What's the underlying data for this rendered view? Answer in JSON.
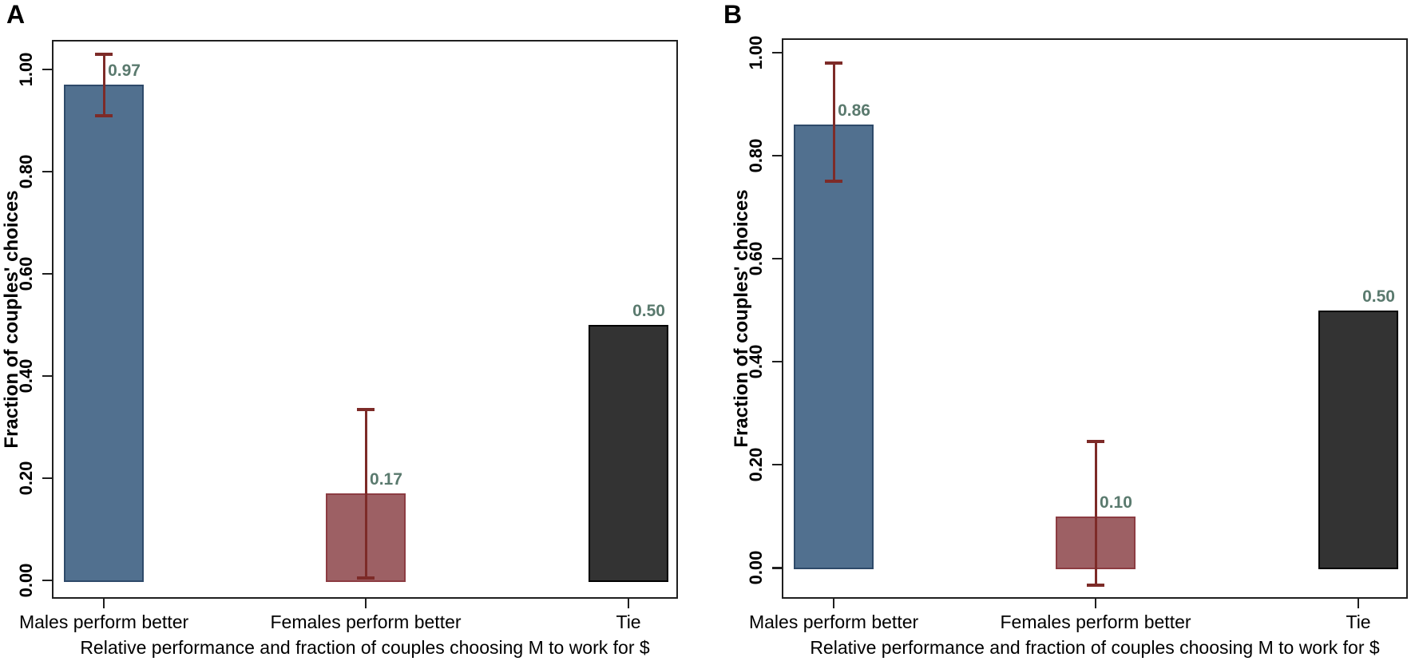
{
  "chart_data": {
    "type": "bar",
    "panels": [
      {
        "label": "A",
        "ylabel": "Fraction of couples' choices",
        "xlabel": "Relative performance and fraction of couples choosing M to work for $",
        "categories": [
          "Males perform better",
          "Females perform better",
          "Tie"
        ],
        "values": [
          0.97,
          0.17,
          0.5
        ],
        "value_labels": [
          "0.97",
          "0.17",
          "0.50"
        ],
        "errors": [
          {
            "low": 0.91,
            "high": 1.03
          },
          {
            "low": 0.005,
            "high": 0.335
          },
          null
        ],
        "yticks": [
          0,
          0.2,
          0.4,
          0.6,
          0.8,
          1.0
        ],
        "ytick_labels": [
          "0.00",
          "0.20",
          "0.40",
          "0.60",
          "0.80",
          "1.00"
        ],
        "ylim": [
          -0.036,
          1.058
        ],
        "grid": false,
        "legend": false
      },
      {
        "label": "B",
        "ylabel": "Fraction of couples' choices",
        "xlabel": "Relative performance and fraction of couples choosing M to work for $",
        "categories": [
          "Males perform better",
          "Females perform better",
          "Tie"
        ],
        "values": [
          0.86,
          0.1,
          0.5
        ],
        "value_labels": [
          "0.86",
          "0.10",
          "0.50"
        ],
        "errors": [
          {
            "low": 0.75,
            "high": 0.98
          },
          {
            "low": -0.034,
            "high": 0.245
          },
          null
        ],
        "yticks": [
          0,
          0.2,
          0.4,
          0.6,
          0.8,
          1.0
        ],
        "ytick_labels": [
          "0.00",
          "0.20",
          "0.40",
          "0.60",
          "0.80",
          "1.00"
        ],
        "ylim": [
          -0.06,
          1.028
        ],
        "grid": false,
        "legend": false
      }
    ],
    "colors": {
      "bar_fills": [
        "#51708f",
        "#9d6064",
        "#333333"
      ],
      "bar_strokes": [
        "#2e4a6a",
        "#8c3c42",
        "#000000"
      ],
      "error_bar": "#7d2b28",
      "value_label": "#5a7a6e",
      "axis": "#1f1f1f",
      "text": "#000000"
    }
  }
}
